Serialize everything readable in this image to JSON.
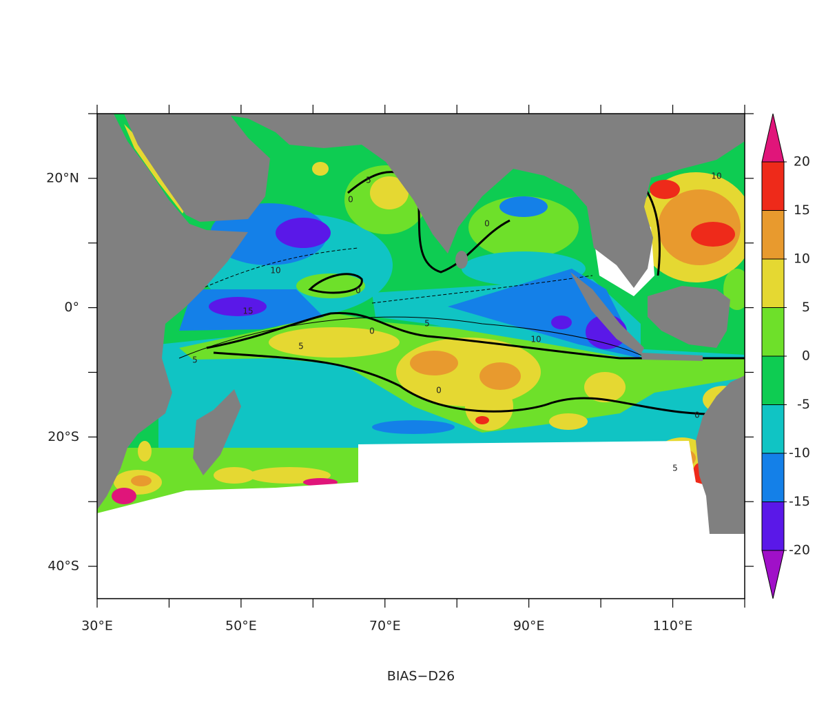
{
  "chart_data": {
    "type": "map",
    "title": "BIAS−D26",
    "xlim": [
      30,
      120
    ],
    "ylim": [
      -45,
      30
    ],
    "xticks": [
      {
        "value": 30,
        "label": "30°E"
      },
      {
        "value": 50,
        "label": "50°E"
      },
      {
        "value": 70,
        "label": "70°E"
      },
      {
        "value": 90,
        "label": "90°E"
      },
      {
        "value": 110,
        "label": "110°E"
      }
    ],
    "x_minor_ticks": [
      40,
      60,
      80,
      100,
      120
    ],
    "yticks": [
      {
        "value": 20,
        "label": "20°N"
      },
      {
        "value": 0,
        "label": "0°"
      },
      {
        "value": -20,
        "label": "20°S"
      },
      {
        "value": -40,
        "label": "40°S"
      }
    ],
    "y_minor_ticks": [
      30,
      10,
      -10,
      -30
    ],
    "colorbar": {
      "levels": [
        -20,
        -15,
        -10,
        -5,
        0,
        5,
        10,
        15,
        20
      ],
      "colors": [
        "#a010c8",
        "#5a18e8",
        "#1480e8",
        "#10c4c4",
        "#0ecc52",
        "#6ee02a",
        "#e5d832",
        "#e89a2e",
        "#ee2a1a",
        "#e0157a"
      ]
    },
    "contour_labels": [
      5,
      0,
      10,
      15,
      0,
      0,
      5,
      0,
      10,
      5,
      5,
      0,
      0,
      5,
      10
    ]
  }
}
